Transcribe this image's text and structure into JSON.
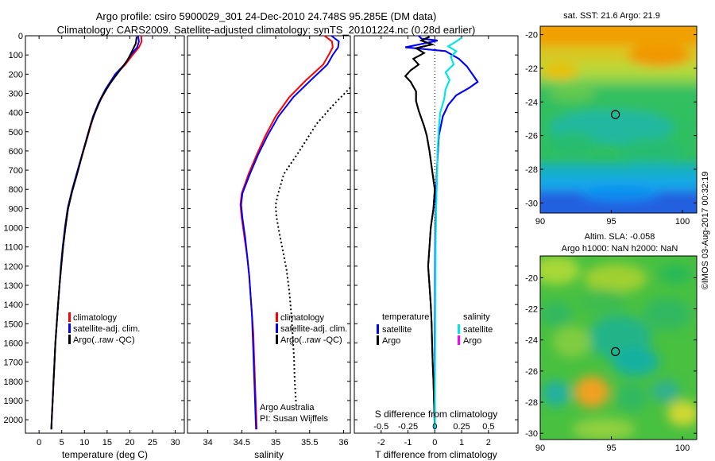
{
  "header": {
    "line1": "Argo profile: csiro 5900029_301 24-Dec-2010 24.748S 95.285E (DM data)",
    "line2": "Climatology: CARS2009. Satellite-adjusted climatology: synTS_20101224.nc (0.28d earlier)"
  },
  "side_note": "©IMOS 03-Aug-2017 00:32:19",
  "colors": {
    "climatology": "#ff0000",
    "satellite": "#0000ff",
    "argo": "#000000",
    "salinity_satellite": "#00e5e5",
    "salinity_argo": "#ff00ff"
  },
  "chart_data": [
    {
      "type": "line",
      "id": "temperature",
      "xlabel": "temperature (deg C)",
      "xlim": [
        -3,
        32
      ],
      "xticks": [
        0,
        5,
        10,
        15,
        20,
        25,
        30
      ],
      "ylim": [
        2070,
        0
      ],
      "yticks": [
        0,
        100,
        200,
        300,
        400,
        500,
        600,
        700,
        800,
        900,
        1000,
        1100,
        1200,
        1300,
        1400,
        1500,
        1600,
        1700,
        1800,
        1900,
        2000
      ],
      "legend": [
        "climatology",
        "satellite-adj. clim.",
        "Argo(..raw -QC)"
      ],
      "series": [
        {
          "name": "climatology",
          "color": "#ff0000",
          "points": [
            [
              22.5,
              0
            ],
            [
              22.6,
              30
            ],
            [
              22.0,
              60
            ],
            [
              20.6,
              100
            ],
            [
              19.0,
              150
            ],
            [
              17.0,
              200
            ],
            [
              14.8,
              280
            ],
            [
              13.2,
              350
            ],
            [
              12.0,
              420
            ],
            [
              11.0,
              500
            ],
            [
              9.8,
              600
            ],
            [
              8.6,
              700
            ],
            [
              7.4,
              800
            ],
            [
              6.4,
              900
            ],
            [
              5.8,
              1000
            ],
            [
              5.3,
              1100
            ],
            [
              4.9,
              1200
            ],
            [
              4.5,
              1300
            ],
            [
              4.2,
              1400
            ],
            [
              3.9,
              1500
            ],
            [
              3.6,
              1600
            ],
            [
              3.4,
              1700
            ],
            [
              3.2,
              1800
            ],
            [
              3.0,
              1900
            ],
            [
              2.8,
              2000
            ],
            [
              2.7,
              2050
            ]
          ]
        },
        {
          "name": "satellite-adj. clim.",
          "color": "#0000ff",
          "points": [
            [
              21.8,
              0
            ],
            [
              22.0,
              30
            ],
            [
              21.6,
              60
            ],
            [
              20.2,
              100
            ],
            [
              18.8,
              150
            ],
            [
              16.8,
              200
            ],
            [
              14.6,
              280
            ],
            [
              13.1,
              350
            ],
            [
              11.9,
              420
            ],
            [
              10.9,
              500
            ],
            [
              9.7,
              600
            ],
            [
              8.5,
              700
            ],
            [
              7.3,
              800
            ],
            [
              6.3,
              900
            ],
            [
              5.7,
              1000
            ],
            [
              5.2,
              1100
            ],
            [
              4.8,
              1200
            ],
            [
              4.5,
              1300
            ],
            [
              4.2,
              1400
            ],
            [
              3.9,
              1500
            ],
            [
              3.6,
              1600
            ],
            [
              3.4,
              1700
            ],
            [
              3.2,
              1800
            ],
            [
              3.0,
              1900
            ],
            [
              2.8,
              2000
            ],
            [
              2.7,
              2050
            ]
          ]
        },
        {
          "name": "Argo(..raw -QC)",
          "color": "#000000",
          "points": [
            [
              21.5,
              5
            ],
            [
              21.3,
              40
            ],
            [
              20.5,
              80
            ],
            [
              19.4,
              130
            ],
            [
              17.5,
              190
            ],
            [
              15.6,
              250
            ],
            [
              13.8,
              320
            ],
            [
              12.5,
              390
            ],
            [
              11.4,
              460
            ],
            [
              10.5,
              540
            ],
            [
              9.5,
              620
            ],
            [
              8.4,
              720
            ],
            [
              7.3,
              810
            ],
            [
              6.4,
              900
            ],
            [
              5.8,
              1000
            ],
            [
              5.3,
              1100
            ],
            [
              4.9,
              1200
            ],
            [
              4.5,
              1300
            ],
            [
              4.2,
              1400
            ],
            [
              3.9,
              1500
            ],
            [
              3.6,
              1600
            ],
            [
              3.4,
              1700
            ],
            [
              3.2,
              1800
            ],
            [
              3.0,
              1900
            ],
            [
              2.8,
              2000
            ],
            [
              2.7,
              2050
            ]
          ]
        }
      ]
    },
    {
      "type": "line",
      "id": "salinity",
      "xlabel": "salinity",
      "xlim": [
        33.7,
        36.1
      ],
      "xticks": [
        34,
        34.5,
        35,
        35.5,
        36
      ],
      "xticklabels": [
        "34",
        "34.5",
        "35",
        "35.5",
        "36"
      ],
      "ylim": [
        2070,
        0
      ],
      "legend": [
        "climatology",
        "satellite-adj. clim.",
        "Argo(..raw -QC)"
      ],
      "annotation": [
        "Argo Australia",
        "PI: Susan Wijffels"
      ],
      "series": [
        {
          "name": "climatology",
          "color": "#ff0000",
          "points": [
            [
              35.72,
              0
            ],
            [
              35.83,
              30
            ],
            [
              35.84,
              60
            ],
            [
              35.78,
              100
            ],
            [
              35.7,
              150
            ],
            [
              35.45,
              230
            ],
            [
              35.2,
              320
            ],
            [
              35.0,
              420
            ],
            [
              34.85,
              520
            ],
            [
              34.72,
              620
            ],
            [
              34.6,
              720
            ],
            [
              34.5,
              820
            ],
            [
              34.48,
              880
            ],
            [
              34.5,
              950
            ],
            [
              34.54,
              1050
            ],
            [
              34.58,
              1150
            ],
            [
              34.61,
              1250
            ],
            [
              34.63,
              1350
            ],
            [
              34.65,
              1450
            ],
            [
              34.67,
              1550
            ],
            [
              34.68,
              1650
            ],
            [
              34.69,
              1750
            ],
            [
              34.7,
              1850
            ],
            [
              34.71,
              1950
            ],
            [
              34.72,
              2050
            ]
          ]
        },
        {
          "name": "satellite-adj. clim.",
          "color": "#0000ff",
          "points": [
            [
              35.82,
              0
            ],
            [
              35.93,
              30
            ],
            [
              35.92,
              60
            ],
            [
              35.84,
              100
            ],
            [
              35.76,
              150
            ],
            [
              35.52,
              230
            ],
            [
              35.26,
              320
            ],
            [
              35.04,
              420
            ],
            [
              34.88,
              520
            ],
            [
              34.74,
              620
            ],
            [
              34.62,
              720
            ],
            [
              34.51,
              820
            ],
            [
              34.49,
              880
            ],
            [
              34.51,
              950
            ],
            [
              34.55,
              1050
            ],
            [
              34.58,
              1150
            ],
            [
              34.61,
              1250
            ],
            [
              34.63,
              1350
            ],
            [
              34.65,
              1450
            ],
            [
              34.66,
              1550
            ],
            [
              34.67,
              1650
            ],
            [
              34.68,
              1750
            ],
            [
              34.69,
              1850
            ],
            [
              34.7,
              1950
            ],
            [
              34.71,
              2050
            ]
          ]
        },
        {
          "name": "Argo(..raw -QC)",
          "color": "#000000",
          "dashed": true,
          "points": [
            [
              36.1,
              270
            ],
            [
              35.85,
              360
            ],
            [
              35.6,
              460
            ],
            [
              35.35,
              600
            ],
            [
              35.12,
              720
            ],
            [
              35.03,
              830
            ],
            [
              35.0,
              880
            ],
            [
              35.01,
              940
            ],
            [
              35.05,
              1020
            ],
            [
              35.1,
              1110
            ],
            [
              35.16,
              1220
            ],
            [
              35.2,
              1330
            ],
            [
              35.23,
              1450
            ],
            [
              35.25,
              1560
            ],
            [
              35.27,
              1680
            ],
            [
              35.28,
              1800
            ],
            [
              35.3,
              1920
            ]
          ]
        }
      ]
    },
    {
      "type": "line",
      "id": "difference",
      "xlabel": "T difference from climatology",
      "xlabel_top": "S difference from climatology",
      "xlim": [
        -3,
        3.1
      ],
      "xticks": [
        -2,
        -1,
        0,
        1,
        2
      ],
      "top_xticks": [
        -0.5,
        -0.25,
        0,
        0.25,
        0.5
      ],
      "top_xticklabels": [
        "-0.5",
        "-0.25",
        "0",
        "0.25",
        "0.5"
      ],
      "ylim": [
        2070,
        0
      ],
      "legend_headers": [
        "temperature",
        "salinity"
      ],
      "legend": [
        "satellite",
        "Argo",
        "satellite",
        "Argo"
      ],
      "series": [
        {
          "name": "temperature satellite",
          "color": "#0000ff",
          "points": [
            [
              -0.6,
              0
            ],
            [
              -0.5,
              15
            ],
            [
              0.1,
              25
            ],
            [
              -0.4,
              40
            ],
            [
              -1.1,
              60
            ],
            [
              0.4,
              80
            ],
            [
              0.9,
              120
            ],
            [
              1.2,
              160
            ],
            [
              1.4,
              200
            ],
            [
              1.6,
              240
            ],
            [
              1.3,
              270
            ],
            [
              0.8,
              310
            ],
            [
              0.5,
              360
            ],
            [
              0.3,
              420
            ],
            [
              0.15,
              520
            ],
            [
              0.1,
              640
            ],
            [
              0.05,
              800
            ],
            [
              0.02,
              1000
            ],
            [
              0.01,
              1300
            ],
            [
              0.0,
              1600
            ],
            [
              0.0,
              2050
            ]
          ]
        },
        {
          "name": "temperature Argo",
          "color": "#000000",
          "points": [
            [
              -0.2,
              5
            ],
            [
              -0.5,
              25
            ],
            [
              -0.1,
              45
            ],
            [
              -0.7,
              65
            ],
            [
              -0.4,
              90
            ],
            [
              -0.8,
              120
            ],
            [
              -0.6,
              150
            ],
            [
              -0.9,
              180
            ],
            [
              -1.1,
              210
            ],
            [
              -0.9,
              240
            ],
            [
              -0.7,
              290
            ],
            [
              -0.7,
              340
            ],
            [
              -0.6,
              390
            ],
            [
              -0.5,
              430
            ],
            [
              -0.4,
              470
            ],
            [
              -0.3,
              520
            ],
            [
              -0.2,
              600
            ],
            [
              -0.1,
              700
            ],
            [
              0.0,
              800
            ],
            [
              -0.05,
              900
            ],
            [
              -0.15,
              1000
            ],
            [
              -0.2,
              1100
            ],
            [
              -0.25,
              1200
            ],
            [
              -0.2,
              1300
            ],
            [
              -0.15,
              1400
            ],
            [
              -0.12,
              1500
            ],
            [
              -0.1,
              1600
            ],
            [
              -0.08,
              1700
            ],
            [
              -0.05,
              1800
            ],
            [
              -0.03,
              1900
            ],
            [
              0.0,
              2050
            ]
          ]
        },
        {
          "name": "salinity satellite",
          "color": "#00e5e5",
          "points": [
            [
              1.0,
              10
            ],
            [
              0.8,
              30
            ],
            [
              0.5,
              55
            ],
            [
              0.8,
              80
            ],
            [
              0.6,
              110
            ],
            [
              0.7,
              150
            ],
            [
              0.4,
              190
            ],
            [
              0.55,
              230
            ],
            [
              0.4,
              280
            ],
            [
              0.35,
              330
            ],
            [
              0.2,
              400
            ],
            [
              0.15,
              480
            ],
            [
              0.1,
              600
            ],
            [
              0.08,
              750
            ],
            [
              0.05,
              900
            ],
            [
              0.03,
              1100
            ],
            [
              0.02,
              1400
            ],
            [
              0.01,
              1700
            ],
            [
              0.0,
              2050
            ]
          ]
        }
      ]
    },
    {
      "type": "heatmap",
      "id": "sst_map",
      "title": "sat. SST: 21.6 Argo: 21.9",
      "xlim": [
        90,
        101
      ],
      "ylim": [
        -30.6,
        -19.5
      ],
      "xticks": [
        90,
        95,
        100
      ],
      "yticks": [
        -20,
        -22,
        -24,
        -26,
        -28,
        -30
      ],
      "marker": {
        "lon": 95.285,
        "lat": -24.748
      }
    },
    {
      "type": "heatmap",
      "id": "sla_map",
      "title_lines": [
        "Altim. SLA: -0.058",
        "Argo h1000: NaN h2000: NaN"
      ],
      "xlim": [
        90,
        101
      ],
      "ylim": [
        -30.4,
        -18.6
      ],
      "xticks": [
        90,
        95,
        100
      ],
      "yticks": [
        -20,
        -22,
        -24,
        -26,
        -28,
        -30
      ],
      "marker": {
        "lon": 95.285,
        "lat": -24.748
      }
    }
  ]
}
